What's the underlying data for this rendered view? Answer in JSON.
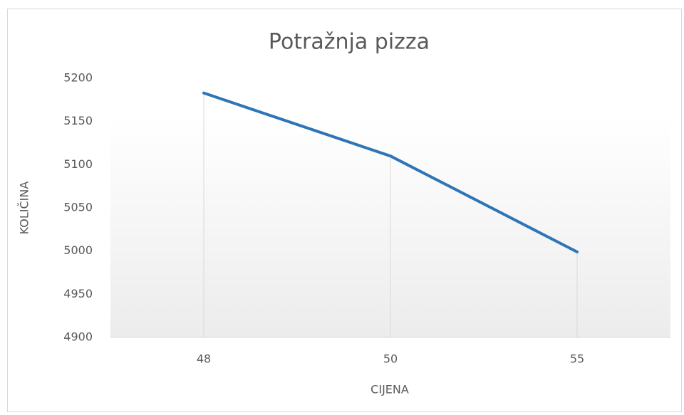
{
  "chart_data": {
    "type": "line",
    "title": "Potražnja pizza",
    "x_label": "CIJENA",
    "y_label": "KOLIČINA",
    "categories": [
      "48",
      "50",
      "55"
    ],
    "values": [
      5183,
      5110,
      4999
    ],
    "color": "#2e75b6",
    "ylim": [
      4900,
      5200
    ],
    "yticks": [
      4900,
      4950,
      5000,
      5050,
      5100,
      5150,
      5200
    ],
    "grid": false,
    "drop_lines": true
  }
}
